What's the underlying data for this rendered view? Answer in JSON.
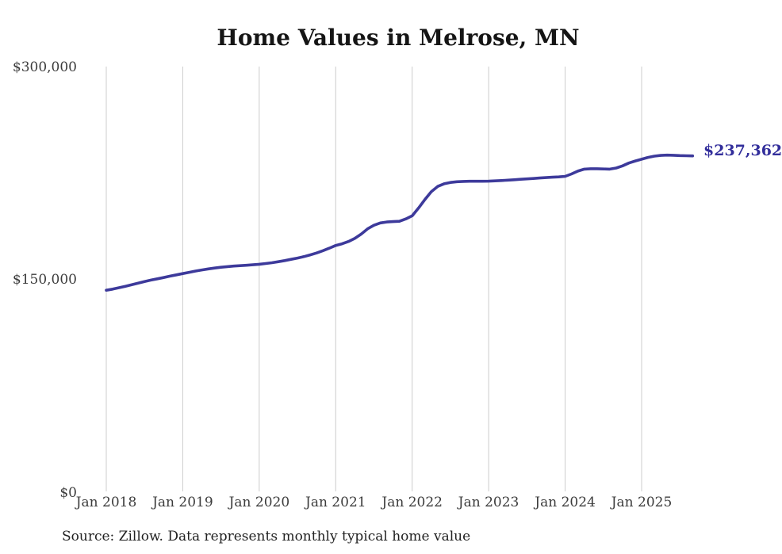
{
  "page": {
    "background": "#ffffff"
  },
  "chart_data": {
    "type": "line",
    "title": "Home Values in Melrose, MN",
    "source_note": "Source: Zillow. Data represents monthly typical home value",
    "series_name": "Monthly typical home value",
    "end_label": "$237,362",
    "end_value": 237362,
    "line_color": "#3d3a9b",
    "grid_color": "#cccccc",
    "legend": "none",
    "grid": "vertical-only",
    "ylim": [
      0,
      300000
    ],
    "y_tick_labels": [
      "$0",
      "$150,000",
      "$300,000"
    ],
    "x_tick_labels": [
      "Jan 2018",
      "Jan 2019",
      "Jan 2020",
      "Jan 2021",
      "Jan 2022",
      "Jan 2023",
      "Jan 2024",
      "Jan 2025"
    ],
    "x_tick_month_indices": [
      0,
      12,
      24,
      36,
      48,
      60,
      72,
      84
    ],
    "x": [
      "2018-01",
      "2018-02",
      "2018-03",
      "2018-04",
      "2018-05",
      "2018-06",
      "2018-07",
      "2018-08",
      "2018-09",
      "2018-10",
      "2018-11",
      "2018-12",
      "2019-01",
      "2019-02",
      "2019-03",
      "2019-04",
      "2019-05",
      "2019-06",
      "2019-07",
      "2019-08",
      "2019-09",
      "2019-10",
      "2019-11",
      "2019-12",
      "2020-01",
      "2020-02",
      "2020-03",
      "2020-04",
      "2020-05",
      "2020-06",
      "2020-07",
      "2020-08",
      "2020-09",
      "2020-10",
      "2020-11",
      "2020-12",
      "2021-01",
      "2021-02",
      "2021-03",
      "2021-04",
      "2021-05",
      "2021-06",
      "2021-07",
      "2021-08",
      "2021-09",
      "2021-10",
      "2021-11",
      "2021-12",
      "2022-01",
      "2022-02",
      "2022-03",
      "2022-04",
      "2022-05",
      "2022-06",
      "2022-07",
      "2022-08",
      "2022-09",
      "2022-10",
      "2022-11",
      "2022-12",
      "2023-01",
      "2023-02",
      "2023-03",
      "2023-04",
      "2023-05",
      "2023-06",
      "2023-07",
      "2023-08",
      "2023-09",
      "2023-10",
      "2023-11",
      "2023-12",
      "2024-01",
      "2024-02",
      "2024-03",
      "2024-04",
      "2024-05",
      "2024-06",
      "2024-07",
      "2024-08",
      "2024-09",
      "2024-10",
      "2024-11",
      "2024-12",
      "2025-01",
      "2025-02",
      "2025-03",
      "2025-04",
      "2025-05",
      "2025-06",
      "2025-07",
      "2025-08",
      "2025-09"
    ],
    "values": [
      142300,
      143100,
      144100,
      145100,
      146200,
      147300,
      148500,
      149500,
      150400,
      151300,
      152300,
      153200,
      154100,
      155000,
      155900,
      156700,
      157400,
      158000,
      158600,
      159000,
      159400,
      159700,
      160000,
      160300,
      160700,
      161200,
      161800,
      162500,
      163300,
      164200,
      165100,
      166100,
      167300,
      168700,
      170300,
      172100,
      174000,
      175200,
      176800,
      179000,
      182000,
      185800,
      188300,
      189900,
      190600,
      190900,
      191100,
      192800,
      195000,
      200500,
      206500,
      212000,
      215800,
      217600,
      218600,
      219100,
      219300,
      219400,
      219400,
      219400,
      219500,
      219700,
      219900,
      220200,
      220500,
      220800,
      221100,
      221400,
      221700,
      222000,
      222300,
      222500,
      222900,
      224600,
      226600,
      228000,
      228300,
      228300,
      228100,
      228000,
      228800,
      230300,
      232300,
      233800,
      235000,
      236300,
      237200,
      237700,
      237900,
      237800,
      237600,
      237450,
      237362
    ]
  }
}
